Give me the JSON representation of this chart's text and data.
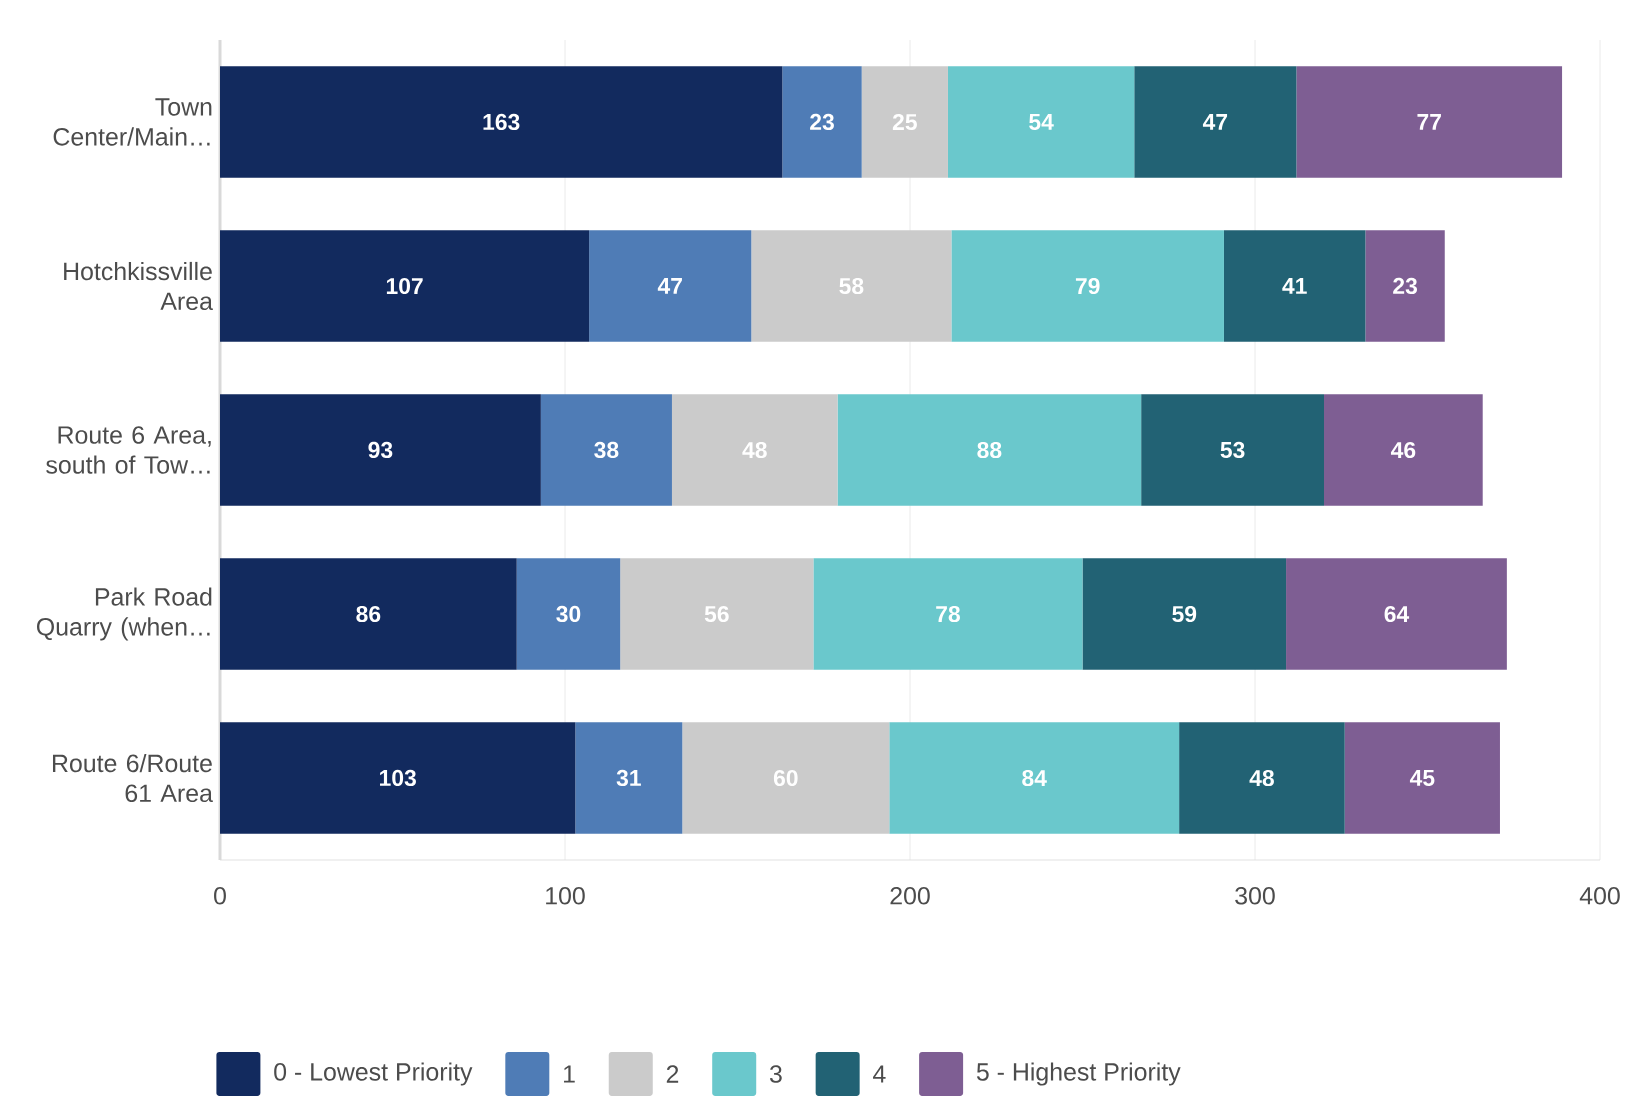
{
  "chart_data": {
    "type": "bar",
    "orientation": "horizontal",
    "stacked": true,
    "data_labels": true,
    "grid": "x",
    "legend": "bottom",
    "categories": [
      "Town Center/Main…",
      "Hotchkissville Area",
      "Route 6 Area, south of Tow…",
      "Park Road Quarry (when…",
      "Route 6/Route 61 Area"
    ],
    "xlim": [
      0,
      400
    ],
    "xticks": [
      0,
      100,
      200,
      300,
      400
    ],
    "series": [
      {
        "name": "0 - Lowest Priority",
        "color": "#122a5e",
        "values": [
          163,
          107,
          93,
          86,
          103
        ]
      },
      {
        "name": "1",
        "color": "#4f7cb6",
        "values": [
          23,
          47,
          38,
          30,
          31
        ]
      },
      {
        "name": "2",
        "color": "#cbcbcb",
        "values": [
          25,
          58,
          48,
          56,
          60
        ]
      },
      {
        "name": "3",
        "color": "#6ac8cc",
        "values": [
          54,
          79,
          88,
          78,
          84
        ]
      },
      {
        "name": "4",
        "color": "#226274",
        "values": [
          47,
          41,
          53,
          59,
          48
        ]
      },
      {
        "name": "5 - Highest Priority",
        "color": "#7e5e93",
        "values": [
          77,
          23,
          46,
          64,
          45
        ]
      }
    ]
  }
}
